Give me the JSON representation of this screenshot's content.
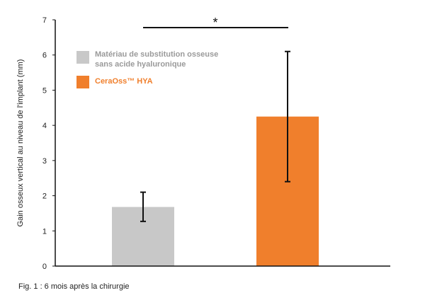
{
  "chart_data": {
    "type": "bar",
    "title": "",
    "xlabel": "",
    "ylabel": "Gain osseux vertical au niveau de l'implant (mm)",
    "ylim": [
      0,
      7
    ],
    "yticks": [
      0,
      1,
      2,
      3,
      4,
      5,
      6,
      7
    ],
    "grid": false,
    "legend_position": "top-left",
    "series": [
      {
        "name": "Matériau de substitution osseuse sans acide hyaluronique",
        "legend_lines": [
          "Matériau de substitution osseuse",
          "sans acide hyaluronique"
        ],
        "value": 1.68,
        "error_low": 1.27,
        "error_high": 2.1,
        "color": "#c8c8c8",
        "legend_text_color": "#9a9a9a"
      },
      {
        "name": "CeraOss™ HYA",
        "legend_lines": [
          "CeraOss™ HYA"
        ],
        "value": 4.25,
        "error_low": 2.4,
        "error_high": 6.1,
        "color": "#f07f2c",
        "legend_text_color": "#f07f2c"
      }
    ],
    "significance": {
      "label": "*",
      "between": [
        0,
        1
      ]
    }
  },
  "caption": "Fig. 1 : 6 mois après la chirurgie"
}
